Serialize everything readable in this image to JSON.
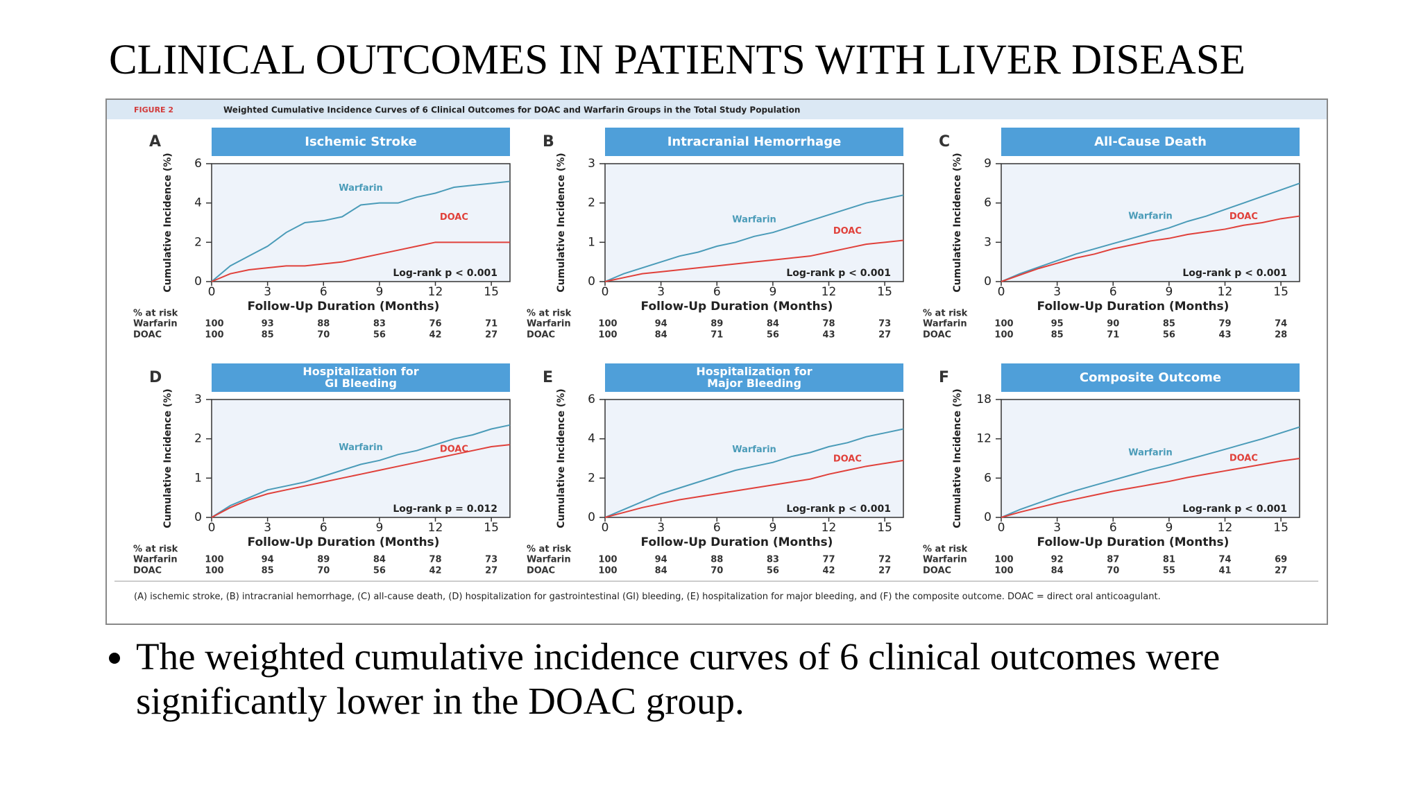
{
  "slide_title": "CLINICAL OUTCOMES IN PATIENTS WITH LIVER DISEASE",
  "figure": {
    "label": "FIGURE 2",
    "title": "Weighted Cumulative Incidence Curves of 6 Clinical Outcomes for DOAC and Warfarin Groups in the Total Study Population",
    "caption": "(A) ischemic stroke, (B) intracranial hemorrhage, (C) all-cause death, (D) hospitalization for gastrointestinal (GI) bleeding, (E) hospitalization for major bleeding, and (F) the composite outcome. DOAC = direct oral anticoagulant."
  },
  "chart_data": [
    {
      "type": "line",
      "panel": "A",
      "title": [
        "Ischemic Stroke"
      ],
      "ylabel": "Cumulative Incidence (%)",
      "xlabel": "Follow-Up Duration (Months)",
      "annotation": "Log-rank p < 0.001",
      "x": [
        0,
        1,
        2,
        3,
        4,
        5,
        6,
        7,
        8,
        9,
        10,
        11,
        12,
        13,
        14,
        15,
        16
      ],
      "xlim": [
        0,
        16
      ],
      "xticks": [
        0,
        3,
        6,
        9,
        12,
        15
      ],
      "ylim": [
        0,
        6
      ],
      "yticks": [
        0,
        2,
        4,
        6
      ],
      "series": [
        {
          "name": "Warfarin",
          "color": "#4a9bb8",
          "values": [
            0,
            0.8,
            1.3,
            1.8,
            2.5,
            3.0,
            3.1,
            3.3,
            3.9,
            4.0,
            4.0,
            4.3,
            4.5,
            4.8,
            4.9,
            5.0,
            5.1
          ]
        },
        {
          "name": "DOAC",
          "color": "#e0403a",
          "values": [
            0,
            0.4,
            0.6,
            0.7,
            0.8,
            0.8,
            0.9,
            1.0,
            1.2,
            1.4,
            1.6,
            1.8,
            2.0,
            2.0,
            2.0,
            2.0,
            2.0
          ]
        }
      ],
      "risk_label": "% at risk",
      "risk": [
        [
          100,
          93,
          88,
          83,
          76,
          71
        ],
        [
          100,
          85,
          70,
          56,
          42,
          27
        ]
      ]
    },
    {
      "type": "line",
      "panel": "B",
      "title": [
        "Intracranial Hemorrhage"
      ],
      "ylabel": "Cumulative Incidence (%)",
      "xlabel": "Follow-Up Duration (Months)",
      "annotation": "Log-rank p < 0.001",
      "x": [
        0,
        1,
        2,
        3,
        4,
        5,
        6,
        7,
        8,
        9,
        10,
        11,
        12,
        13,
        14,
        15,
        16
      ],
      "xlim": [
        0,
        16
      ],
      "xticks": [
        0,
        3,
        6,
        9,
        12,
        15
      ],
      "ylim": [
        0,
        3
      ],
      "yticks": [
        0,
        1,
        2,
        3
      ],
      "series": [
        {
          "name": "Warfarin",
          "color": "#4a9bb8",
          "values": [
            0,
            0.2,
            0.35,
            0.5,
            0.65,
            0.75,
            0.9,
            1.0,
            1.15,
            1.25,
            1.4,
            1.55,
            1.7,
            1.85,
            2.0,
            2.1,
            2.2
          ]
        },
        {
          "name": "DOAC",
          "color": "#e0403a",
          "values": [
            0,
            0.1,
            0.2,
            0.25,
            0.3,
            0.35,
            0.4,
            0.45,
            0.5,
            0.55,
            0.6,
            0.65,
            0.75,
            0.85,
            0.95,
            1.0,
            1.05
          ]
        }
      ],
      "risk_label": "% at risk",
      "risk": [
        [
          100,
          94,
          89,
          84,
          78,
          73
        ],
        [
          100,
          84,
          71,
          56,
          43,
          27
        ]
      ]
    },
    {
      "type": "line",
      "panel": "C",
      "title": [
        "All-Cause Death"
      ],
      "ylabel": "Cumulative Incidence (%)",
      "xlabel": "Follow-Up Duration (Months)",
      "annotation": "Log-rank p < 0.001",
      "x": [
        0,
        1,
        2,
        3,
        4,
        5,
        6,
        7,
        8,
        9,
        10,
        11,
        12,
        13,
        14,
        15,
        16
      ],
      "xlim": [
        0,
        16
      ],
      "xticks": [
        0,
        3,
        6,
        9,
        12,
        15
      ],
      "ylim": [
        0,
        9
      ],
      "yticks": [
        0,
        3,
        6,
        9
      ],
      "series": [
        {
          "name": "Warfarin",
          "color": "#4a9bb8",
          "values": [
            0,
            0.6,
            1.1,
            1.6,
            2.1,
            2.5,
            2.9,
            3.3,
            3.7,
            4.1,
            4.6,
            5.0,
            5.5,
            6.0,
            6.5,
            7.0,
            7.5
          ]
        },
        {
          "name": "DOAC",
          "color": "#e0403a",
          "values": [
            0,
            0.5,
            1.0,
            1.4,
            1.8,
            2.1,
            2.5,
            2.8,
            3.1,
            3.3,
            3.6,
            3.8,
            4.0,
            4.3,
            4.5,
            4.8,
            5.0
          ]
        }
      ],
      "risk_label": "% at risk",
      "risk": [
        [
          100,
          95,
          90,
          85,
          79,
          74
        ],
        [
          100,
          85,
          71,
          56,
          43,
          28
        ]
      ]
    },
    {
      "type": "line",
      "panel": "D",
      "title": [
        "Hospitalization for",
        "GI Bleeding"
      ],
      "ylabel": "Cumulative Incidence (%)",
      "xlabel": "Follow-Up Duration (Months)",
      "annotation": "Log-rank p = 0.012",
      "x": [
        0,
        1,
        2,
        3,
        4,
        5,
        6,
        7,
        8,
        9,
        10,
        11,
        12,
        13,
        14,
        15,
        16
      ],
      "xlim": [
        0,
        16
      ],
      "xticks": [
        0,
        3,
        6,
        9,
        12,
        15
      ],
      "ylim": [
        0,
        3
      ],
      "yticks": [
        0,
        1,
        2,
        3
      ],
      "series": [
        {
          "name": "Warfarin",
          "color": "#4a9bb8",
          "values": [
            0,
            0.3,
            0.5,
            0.7,
            0.8,
            0.9,
            1.05,
            1.2,
            1.35,
            1.45,
            1.6,
            1.7,
            1.85,
            2.0,
            2.1,
            2.25,
            2.35
          ]
        },
        {
          "name": "DOAC",
          "color": "#e0403a",
          "values": [
            0,
            0.25,
            0.45,
            0.6,
            0.7,
            0.8,
            0.9,
            1.0,
            1.1,
            1.2,
            1.3,
            1.4,
            1.5,
            1.6,
            1.7,
            1.8,
            1.85
          ]
        }
      ],
      "risk_label": "% at risk",
      "risk": [
        [
          100,
          94,
          89,
          84,
          78,
          73
        ],
        [
          100,
          85,
          70,
          56,
          42,
          27
        ]
      ]
    },
    {
      "type": "line",
      "panel": "E",
      "title": [
        "Hospitalization for",
        "Major Bleeding"
      ],
      "ylabel": "Cumulative Incidence (%)",
      "xlabel": "Follow-Up Duration (Months)",
      "annotation": "Log-rank p < 0.001",
      "x": [
        0,
        1,
        2,
        3,
        4,
        5,
        6,
        7,
        8,
        9,
        10,
        11,
        12,
        13,
        14,
        15,
        16
      ],
      "xlim": [
        0,
        16
      ],
      "xticks": [
        0,
        3,
        6,
        9,
        12,
        15
      ],
      "ylim": [
        0,
        6
      ],
      "yticks": [
        0,
        2,
        4,
        6
      ],
      "series": [
        {
          "name": "Warfarin",
          "color": "#4a9bb8",
          "values": [
            0,
            0.4,
            0.8,
            1.2,
            1.5,
            1.8,
            2.1,
            2.4,
            2.6,
            2.8,
            3.1,
            3.3,
            3.6,
            3.8,
            4.1,
            4.3,
            4.5
          ]
        },
        {
          "name": "DOAC",
          "color": "#e0403a",
          "values": [
            0,
            0.25,
            0.5,
            0.7,
            0.9,
            1.05,
            1.2,
            1.35,
            1.5,
            1.65,
            1.8,
            1.95,
            2.2,
            2.4,
            2.6,
            2.75,
            2.9
          ]
        }
      ],
      "risk_label": "% at risk",
      "risk": [
        [
          100,
          94,
          88,
          83,
          77,
          72
        ],
        [
          100,
          84,
          70,
          56,
          42,
          27
        ]
      ]
    },
    {
      "type": "line",
      "panel": "F",
      "title": [
        "Composite Outcome"
      ],
      "ylabel": "Cumulative Incidence (%)",
      "xlabel": "Follow-Up Duration (Months)",
      "annotation": "Log-rank p < 0.001",
      "x": [
        0,
        1,
        2,
        3,
        4,
        5,
        6,
        7,
        8,
        9,
        10,
        11,
        12,
        13,
        14,
        15,
        16
      ],
      "xlim": [
        0,
        16
      ],
      "xticks": [
        0,
        3,
        6,
        9,
        12,
        15
      ],
      "ylim": [
        0,
        18
      ],
      "yticks": [
        0,
        6,
        12,
        18
      ],
      "series": [
        {
          "name": "Warfarin",
          "color": "#4a9bb8",
          "values": [
            0,
            1.2,
            2.2,
            3.2,
            4.1,
            4.9,
            5.7,
            6.5,
            7.3,
            8.0,
            8.8,
            9.6,
            10.4,
            11.2,
            12.0,
            12.9,
            13.8
          ]
        },
        {
          "name": "DOAC",
          "color": "#e0403a",
          "values": [
            0,
            0.8,
            1.5,
            2.2,
            2.8,
            3.4,
            4.0,
            4.5,
            5.0,
            5.5,
            6.1,
            6.6,
            7.1,
            7.6,
            8.1,
            8.6,
            9.0
          ]
        }
      ],
      "risk_label": "% at risk",
      "risk": [
        [
          100,
          92,
          87,
          81,
          74,
          69
        ],
        [
          100,
          84,
          70,
          55,
          41,
          27
        ]
      ]
    }
  ],
  "bullet": "The weighted cumulative incidence curves of 6 clinical outcomes were significantly lower in the DOAC group."
}
